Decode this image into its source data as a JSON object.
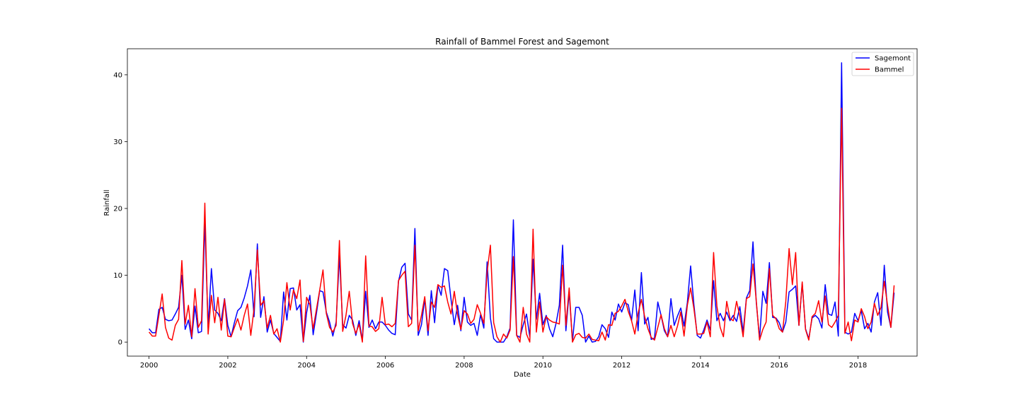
{
  "chart_data": {
    "type": "line",
    "title": "Rainfall of Bammel Forest and Sagemont",
    "xlabel": "Date",
    "ylabel": "Rainfall",
    "xlim": [
      1999.45,
      2019.5
    ],
    "ylim": [
      -2.1,
      43.9
    ],
    "x_ticks": [
      2000,
      2002,
      2004,
      2006,
      2008,
      2010,
      2012,
      2014,
      2016,
      2018
    ],
    "x_tick_labels": [
      "2000",
      "2002",
      "2004",
      "2006",
      "2008",
      "2010",
      "2012",
      "2014",
      "2016",
      "2018"
    ],
    "y_ticks": [
      0,
      10,
      20,
      30,
      40
    ],
    "y_tick_labels": [
      "0",
      "10",
      "20",
      "30",
      "40"
    ],
    "legend_position": "top-right",
    "grid": false,
    "x_start": 2000,
    "x_step_months": 1,
    "series": [
      {
        "name": "Sagemont",
        "color": "#0000ff",
        "values": [
          2.0,
          1.4,
          1.4,
          4.9,
          5.2,
          3.4,
          3.2,
          3.3,
          4.2,
          5.2,
          10.0,
          1.9,
          3.3,
          0.5,
          5.4,
          1.4,
          1.6,
          18.0,
          2.2,
          11.0,
          4.8,
          4.3,
          3.2,
          6.5,
          2.5,
          0.8,
          2.9,
          4.7,
          5.2,
          6.6,
          8.4,
          10.8,
          3.8,
          14.7,
          3.7,
          6.8,
          1.5,
          3.3,
          1.3,
          0.7,
          0.1,
          7.5,
          3.3,
          8.0,
          8.1,
          4.8,
          5.6,
          0.0,
          4.4,
          7.0,
          1.1,
          4.3,
          7.7,
          7.5,
          4.5,
          3.0,
          0.9,
          3.0,
          12.9,
          2.6,
          2.1,
          4.0,
          3.3,
          1.0,
          3.2,
          0.3,
          7.6,
          2.2,
          3.3,
          2.0,
          3.0,
          3.0,
          2.5,
          1.8,
          1.3,
          1.1,
          9.1,
          11.2,
          11.8,
          4.2,
          3.3,
          17.0,
          1.0,
          2.6,
          6.5,
          1.0,
          7.7,
          2.9,
          8.5,
          7.0,
          11.0,
          10.7,
          6.4,
          2.6,
          5.5,
          1.7,
          6.7,
          3.0,
          2.5,
          2.8,
          1.0,
          4.1,
          2.1,
          12.0,
          3.6,
          0.5,
          0.0,
          0.0,
          0.0,
          0.8,
          2.1,
          18.3,
          1.0,
          0.7,
          2.6,
          4.2,
          0.8,
          12.4,
          3.4,
          7.3,
          2.6,
          4.0,
          2.0,
          0.8,
          2.8,
          5.5,
          14.5,
          1.7,
          7.5,
          0.1,
          5.2,
          5.2,
          4.0,
          0.0,
          0.9,
          0.0,
          0.1,
          0.8,
          2.6,
          2.0,
          0.7,
          4.5,
          3.3,
          5.7,
          4.5,
          5.9,
          5.6,
          3.2,
          7.8,
          1.7,
          10.4,
          2.7,
          3.7,
          0.4,
          0.6,
          6.0,
          4.0,
          1.7,
          0.8,
          6.5,
          2.5,
          3.9,
          5.1,
          2.4,
          5.9,
          11.4,
          5.6,
          1.0,
          0.6,
          1.8,
          3.3,
          1.8,
          9.2,
          3.2,
          4.3,
          3.2,
          4.5,
          3.2,
          4.0,
          3.1,
          5.3,
          1.5,
          6.6,
          7.7,
          15.0,
          6.0,
          0.5,
          7.6,
          5.8,
          11.9,
          3.7,
          3.6,
          2.9,
          1.5,
          3.0,
          7.5,
          7.9,
          8.4,
          2.5,
          8.8,
          2.0,
          0.5,
          3.6,
          4.0,
          3.5,
          2.1,
          8.6,
          4.2,
          4.0,
          6.0,
          0.9,
          41.8,
          1.5,
          1.2,
          1.5,
          4.3,
          3.2,
          4.7,
          2.0,
          2.8,
          1.5,
          6.0,
          7.4,
          2.5,
          11.5,
          4.5,
          2.2,
          7.4
        ]
      },
      {
        "name": "Bammel",
        "color": "#ff0000",
        "values": [
          1.5,
          0.9,
          0.9,
          4.0,
          7.2,
          2.2,
          0.6,
          0.3,
          2.5,
          3.4,
          12.2,
          2.7,
          5.5,
          0.8,
          8.0,
          2.2,
          3.2,
          20.8,
          1.2,
          7.0,
          2.9,
          6.7,
          1.8,
          6.4,
          0.9,
          0.8,
          2.2,
          3.5,
          1.8,
          4.0,
          5.7,
          1.0,
          5.0,
          13.8,
          5.5,
          6.2,
          2.1,
          4.0,
          1.2,
          2.0,
          0.0,
          3.3,
          8.9,
          4.8,
          7.8,
          6.5,
          9.3,
          0.1,
          6.7,
          5.6,
          2.0,
          4.9,
          7.8,
          10.8,
          4.3,
          2.2,
          1.5,
          2.5,
          15.2,
          1.6,
          4.0,
          7.6,
          2.8,
          1.3,
          2.7,
          0.0,
          12.9,
          2.4,
          2.3,
          1.6,
          2.0,
          6.7,
          2.6,
          2.7,
          2.3,
          2.8,
          9.2,
          10.0,
          10.6,
          2.3,
          2.8,
          14.5,
          1.7,
          4.0,
          6.8,
          1.7,
          6.0,
          5.2,
          8.6,
          8.2,
          8.4,
          6.0,
          4.2,
          7.6,
          4.1,
          1.9,
          4.7,
          4.2,
          2.8,
          3.4,
          5.6,
          4.3,
          2.8,
          10.5,
          14.5,
          2.9,
          0.8,
          0.0,
          1.2,
          0.6,
          1.8,
          12.8,
          1.0,
          0.0,
          5.2,
          1.2,
          0.0,
          16.9,
          1.5,
          6.0,
          1.5,
          3.8,
          3.3,
          3.0,
          2.9,
          2.7,
          11.5,
          2.5,
          8.1,
          0.0,
          1.1,
          1.3,
          0.7,
          0.6,
          1.2,
          0.4,
          0.3,
          0.2,
          1.5,
          0.3,
          2.6,
          2.5,
          4.3,
          4.6,
          5.4,
          6.4,
          4.6,
          3.2,
          1.2,
          4.3,
          6.4,
          3.8,
          2.0,
          0.7,
          0.3,
          2.2,
          4.1,
          2.0,
          0.8,
          2.5,
          0.8,
          2.4,
          4.5,
          0.9,
          5.5,
          8.1,
          5.0,
          1.2,
          1.2,
          1.3,
          3.0,
          0.8,
          13.4,
          5.4,
          2.2,
          0.8,
          6.1,
          3.5,
          3.2,
          6.1,
          3.9,
          0.8,
          6.5,
          6.8,
          11.7,
          6.2,
          0.3,
          1.9,
          3.0,
          11.0,
          4.0,
          3.5,
          2.0,
          1.5,
          6.1,
          14.0,
          8.6,
          13.4,
          2.5,
          9.0,
          1.9,
          0.3,
          3.8,
          4.3,
          6.2,
          3.0,
          6.9,
          2.6,
          2.2,
          3.0,
          4.0,
          35.0,
          1.3,
          3.0,
          0.2,
          3.3,
          3.0,
          5.0,
          3.8,
          2.0,
          3.0,
          5.8,
          4.0,
          5.2,
          9.1,
          5.5,
          2.2,
          8.5
        ]
      }
    ]
  }
}
